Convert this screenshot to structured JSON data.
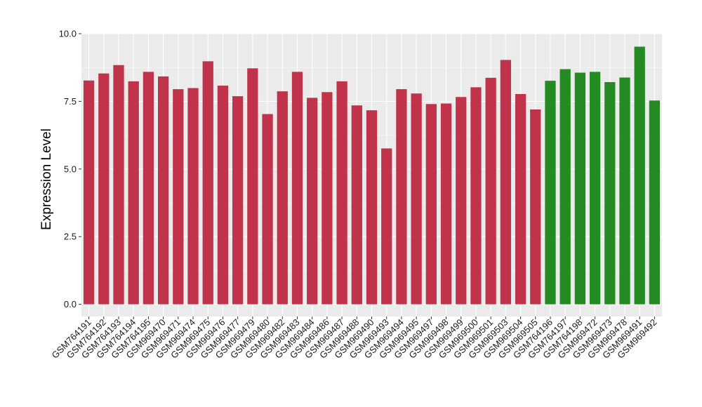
{
  "chart_data": {
    "type": "bar",
    "title": "",
    "xlabel": "",
    "ylabel": "Expression Level",
    "ylim": [
      -0.45,
      10.0
    ],
    "yticks": [
      0.0,
      2.5,
      5.0,
      7.5,
      10.0
    ],
    "ytick_labels": [
      "0.0",
      "2.5",
      "5.0",
      "7.5",
      "10.0"
    ],
    "grid": true,
    "legend": "none",
    "colors": {
      "red_group": "#c1334b",
      "green_group": "#238b22",
      "panel_bg": "#ebebeb",
      "grid": "#ffffff"
    },
    "categories": [
      "GSM764191",
      "GSM764192",
      "GSM764193",
      "GSM764194",
      "GSM764195",
      "GSM969470",
      "GSM969471",
      "GSM969474",
      "GSM969475",
      "GSM969476",
      "GSM969477",
      "GSM969479",
      "GSM969480",
      "GSM969482",
      "GSM969483",
      "GSM969484",
      "GSM969486",
      "GSM969487",
      "GSM969488",
      "GSM969490",
      "GSM969493",
      "GSM969494",
      "GSM969495",
      "GSM969497",
      "GSM969498",
      "GSM969499",
      "GSM969500",
      "GSM969501",
      "GSM969503",
      "GSM969504",
      "GSM969505",
      "GSM764196",
      "GSM764197",
      "GSM764198",
      "GSM969472",
      "GSM969473",
      "GSM969478",
      "GSM969491",
      "GSM969492"
    ],
    "values": [
      8.27,
      8.53,
      8.84,
      8.24,
      8.59,
      8.42,
      7.95,
      7.99,
      8.98,
      8.08,
      7.69,
      8.72,
      7.03,
      7.87,
      8.59,
      7.63,
      7.84,
      8.24,
      7.35,
      7.17,
      5.76,
      7.95,
      7.79,
      7.4,
      7.42,
      7.66,
      8.02,
      8.37,
      9.03,
      7.77,
      7.2,
      8.26,
      8.69,
      8.56,
      8.59,
      8.21,
      8.38,
      9.52,
      7.53
    ],
    "groups": [
      "red",
      "red",
      "red",
      "red",
      "red",
      "red",
      "red",
      "red",
      "red",
      "red",
      "red",
      "red",
      "red",
      "red",
      "red",
      "red",
      "red",
      "red",
      "red",
      "red",
      "red",
      "red",
      "red",
      "red",
      "red",
      "red",
      "red",
      "red",
      "red",
      "red",
      "red",
      "green",
      "green",
      "green",
      "green",
      "green",
      "green",
      "green",
      "green"
    ]
  }
}
